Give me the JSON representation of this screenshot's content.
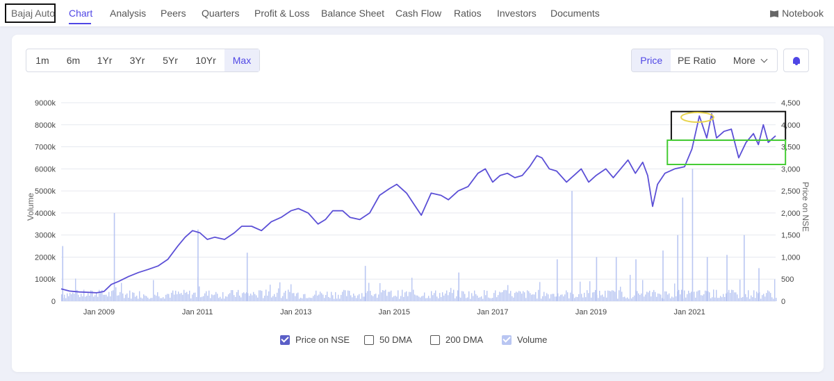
{
  "nav": {
    "company": "Bajaj Auto",
    "items": [
      "Chart",
      "Analysis",
      "Peers",
      "Quarters",
      "Profit & Loss",
      "Balance Sheet",
      "Cash Flow",
      "Ratios",
      "Investors",
      "Documents"
    ],
    "notebook": "Notebook"
  },
  "ranges": [
    "1m",
    "6m",
    "1Yr",
    "3Yr",
    "5Yr",
    "10Yr",
    "Max"
  ],
  "chart_types": {
    "price": "Price",
    "pe": "PE Ratio",
    "more": "More"
  },
  "legend": {
    "price": "Price on NSE",
    "dma50": "50 DMA",
    "dma200": "200 DMA",
    "volume": "Volume"
  },
  "colors": {
    "accent": "#4f46e5",
    "price_line": "#5b4fd6",
    "volume_bar": "#b9c6f2",
    "highlight_black": "#111111",
    "highlight_green": "#44cc33",
    "highlight_yellow": "#e8d44d"
  },
  "chart_data": {
    "type": "line",
    "xlabel": "",
    "ylabel_left": "Volume",
    "ylabel_right": "Price on NSE",
    "x_ticks": [
      "Jan 2009",
      "Jan 2011",
      "Jan 2013",
      "Jan 2015",
      "Jan 2017",
      "Jan 2019",
      "Jan 2021"
    ],
    "y_left_ticks": [
      "0",
      "1000k",
      "2000k",
      "3000k",
      "4000k",
      "5000k",
      "6000k",
      "7000k",
      "8000k",
      "9000k"
    ],
    "y_right_ticks": [
      "0",
      "500",
      "1,000",
      "1,500",
      "2,000",
      "2,500",
      "3,000",
      "3,500",
      "4,000",
      "4,500"
    ],
    "x_range": [
      2008.23,
      2022.75
    ],
    "ylim_left": [
      0,
      9000
    ],
    "ylim_right": [
      0,
      4500
    ],
    "grid": true,
    "series": [
      {
        "name": "Price on NSE",
        "axis": "right",
        "x": [
          2008.23,
          2008.4,
          2008.6,
          2008.8,
          2008.95,
          2009.1,
          2009.25,
          2009.4,
          2009.6,
          2009.8,
          2010.0,
          2010.2,
          2010.4,
          2010.6,
          2010.75,
          2010.9,
          2011.05,
          2011.2,
          2011.35,
          2011.55,
          2011.75,
          2011.9,
          2012.1,
          2012.3,
          2012.5,
          2012.7,
          2012.9,
          2013.05,
          2013.25,
          2013.45,
          2013.6,
          2013.75,
          2013.95,
          2014.1,
          2014.3,
          2014.5,
          2014.7,
          2014.9,
          2015.05,
          2015.25,
          2015.4,
          2015.55,
          2015.75,
          2015.95,
          2016.1,
          2016.3,
          2016.5,
          2016.7,
          2016.85,
          2017.0,
          2017.15,
          2017.3,
          2017.45,
          2017.6,
          2017.75,
          2017.9,
          2018.0,
          2018.15,
          2018.3,
          2018.5,
          2018.65,
          2018.8,
          2018.95,
          2019.1,
          2019.3,
          2019.45,
          2019.6,
          2019.75,
          2019.9,
          2020.05,
          2020.15,
          2020.25,
          2020.35,
          2020.5,
          2020.7,
          2020.9,
          2021.05,
          2021.2,
          2021.35,
          2021.45,
          2021.55,
          2021.7,
          2021.85,
          2022.0,
          2022.15,
          2022.3,
          2022.4,
          2022.5,
          2022.6,
          2022.75
        ],
        "y": [
          280,
          230,
          210,
          200,
          190,
          220,
          380,
          450,
          560,
          650,
          720,
          800,
          950,
          1250,
          1450,
          1600,
          1550,
          1400,
          1450,
          1400,
          1550,
          1700,
          1700,
          1600,
          1800,
          1900,
          2050,
          2100,
          2000,
          1750,
          1850,
          2050,
          2050,
          1900,
          1850,
          2000,
          2400,
          2550,
          2650,
          2450,
          2200,
          1950,
          2450,
          2400,
          2300,
          2500,
          2600,
          2900,
          3000,
          2700,
          2850,
          2900,
          2800,
          2850,
          3050,
          3300,
          3250,
          3000,
          2950,
          2700,
          2850,
          3000,
          2700,
          2850,
          3000,
          2800,
          3000,
          3200,
          2900,
          3150,
          2850,
          2150,
          2650,
          2900,
          3000,
          3050,
          3450,
          4200,
          3700,
          4250,
          3700,
          3850,
          3900,
          3250,
          3600,
          3800,
          3550,
          4000,
          3600,
          3750
        ]
      },
      {
        "name": "Volume",
        "axis": "left",
        "baseline": 350,
        "spikes": [
          [
            2008.25,
            2500
          ],
          [
            2009.3,
            4000
          ],
          [
            2011.0,
            3250
          ],
          [
            2012.0,
            2200
          ],
          [
            2014.4,
            1600
          ],
          [
            2016.3,
            1300
          ],
          [
            2018.3,
            1900
          ],
          [
            2018.6,
            5000
          ],
          [
            2019.1,
            2000
          ],
          [
            2019.5,
            2000
          ],
          [
            2019.9,
            1900
          ],
          [
            2020.45,
            2300
          ],
          [
            2020.75,
            3000
          ],
          [
            2020.85,
            4700
          ],
          [
            2021.05,
            6000
          ],
          [
            2021.35,
            2000
          ],
          [
            2021.75,
            2100
          ],
          [
            2022.1,
            3000
          ],
          [
            2022.4,
            1500
          ]
        ]
      }
    ],
    "annotations": [
      {
        "shape": "rectangle",
        "color": "black",
        "x_range": [
          2020.63,
          2022.95
        ],
        "y_range": [
          3650,
          4300
        ]
      },
      {
        "shape": "rectangle",
        "color": "green",
        "x_range": [
          2020.55,
          2022.95
        ],
        "y_range": [
          3100,
          3650
        ]
      },
      {
        "shape": "ellipse",
        "color": "yellow",
        "center": [
          2021.16,
          4170
        ],
        "radius": [
          0.33,
          110
        ]
      }
    ]
  }
}
